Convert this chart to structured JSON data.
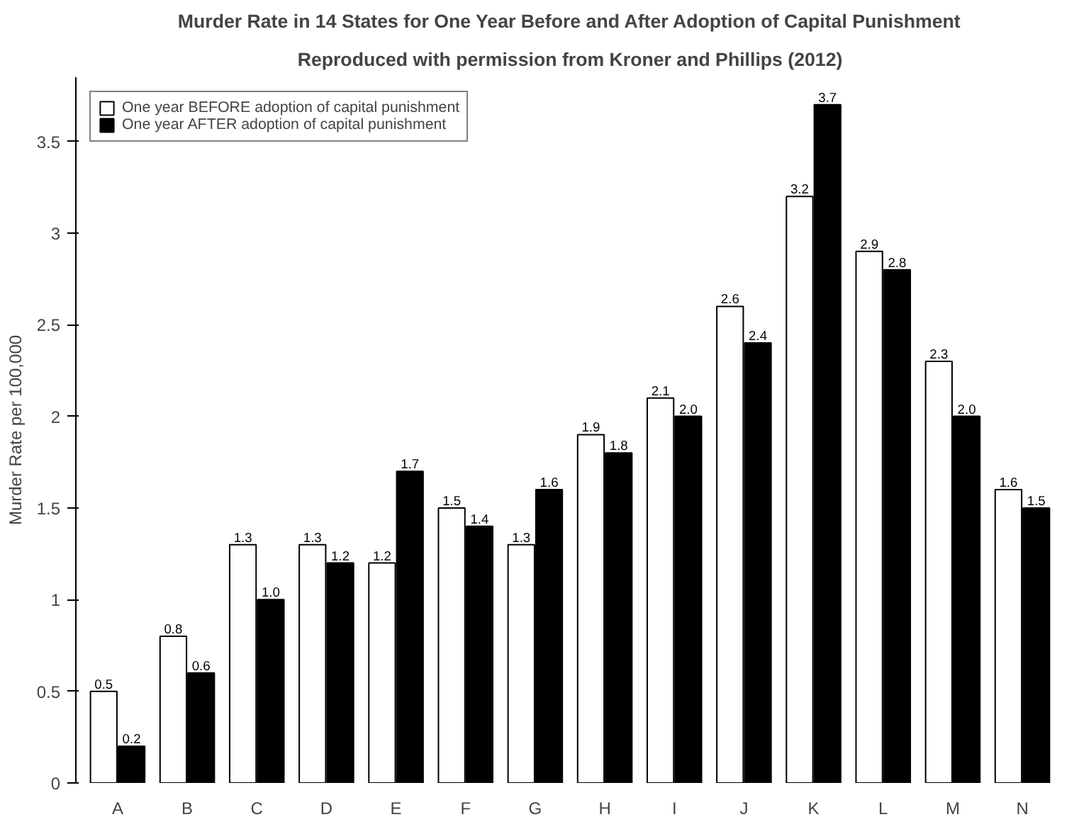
{
  "chart_data": {
    "type": "bar",
    "title": "Murder Rate in 14 States for One Year Before and After Adoption of Capital Punishment",
    "subtitle": "Reproduced with permission from Kroner and Phillips (2012)",
    "ylabel": "Murder Rate per 100,000",
    "categories": [
      "A",
      "B",
      "C",
      "D",
      "E",
      "F",
      "G",
      "H",
      "I",
      "J",
      "K",
      "L",
      "M",
      "N"
    ],
    "series": [
      {
        "name": "One year BEFORE adoption of capital punishment",
        "color": "#ffffff",
        "values": [
          0.5,
          0.8,
          1.3,
          1.3,
          1.2,
          1.5,
          1.3,
          1.9,
          2.1,
          2.6,
          3.2,
          2.9,
          2.3,
          1.6
        ],
        "value_labels": [
          "0.5",
          "0.8",
          "1.3",
          "1.3",
          "1.2",
          "1.5",
          "1.3",
          "1.9",
          "2.1",
          "2.6",
          "3.2",
          "2.9",
          "2.3",
          "1.6"
        ]
      },
      {
        "name": "One year AFTER adoption of capital punishment",
        "color": "#000000",
        "values": [
          0.2,
          0.6,
          1.0,
          1.2,
          1.7,
          1.4,
          1.6,
          1.8,
          2.0,
          2.4,
          3.7,
          2.8,
          2.0,
          1.5
        ],
        "value_labels": [
          "0.2",
          "0.6",
          "1.0",
          "1.2",
          "1.7",
          "1.4",
          "1.6",
          "1.8",
          "2.0",
          "2.4",
          "3.7",
          "2.8",
          "2.0",
          "1.5"
        ]
      }
    ],
    "ylim": [
      0,
      3.85
    ],
    "yticks": [
      0,
      0.5,
      1,
      1.5,
      2,
      2.5,
      3,
      3.5
    ],
    "grid": false,
    "legend": "top left"
  }
}
